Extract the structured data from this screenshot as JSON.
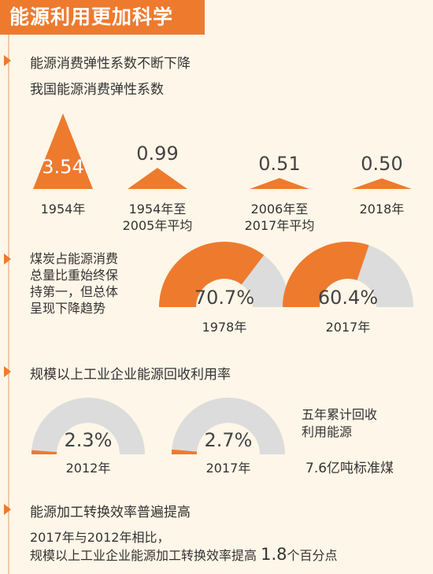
{
  "title": "能源利用更加科学",
  "colors": {
    "accent": "#ee7a2e",
    "gray": "#dcdcdc",
    "background": "#fef6e8"
  },
  "section1": {
    "heading": "能源消费弹性系数不断下降",
    "subheading": "我国能源消费弹性系数",
    "chart_data": {
      "type": "bar",
      "categories": [
        "1954年",
        "1954年至\n2005年平均",
        "2006年至\n2017年平均",
        "2018年"
      ],
      "values": [
        3.54,
        0.99,
        0.51,
        0.5
      ],
      "value_labels": [
        "3.54",
        "0.99",
        "0.51",
        "0.50"
      ],
      "category_lines": [
        [
          "1954年"
        ],
        [
          "1954年至",
          "2005年平均"
        ],
        [
          "2006年至",
          "2017年平均"
        ],
        [
          "2018年"
        ]
      ]
    }
  },
  "section2": {
    "heading_lines": [
      "煤炭占能源消费",
      "总量比重始终保",
      "持第一，但总体",
      "呈现下降趋势"
    ],
    "chart_data": {
      "type": "pie",
      "categories": [
        "1978年",
        "2017年"
      ],
      "values": [
        70.7,
        60.4
      ],
      "value_labels": [
        "70.7%",
        "60.4%"
      ],
      "unit": "%"
    }
  },
  "section3": {
    "heading": "规模以上工业企业能源回收利用率",
    "chart_data": {
      "type": "pie",
      "categories": [
        "2012年",
        "2017年"
      ],
      "values": [
        2.3,
        2.7
      ],
      "value_labels": [
        "2.3%",
        "2.7%"
      ],
      "unit": "%"
    },
    "note_lines": [
      "五年累计回收",
      "利用能源"
    ],
    "note_value": "7.6亿吨标准煤"
  },
  "section4": {
    "heading": "能源加工转换效率普遍提高",
    "line1": "2017年与2012年相比，",
    "line2_prefix": "规模以上工业企业能源加工转换效率提高 ",
    "line2_value": "1.8",
    "line2_suffix": "个百分点"
  }
}
